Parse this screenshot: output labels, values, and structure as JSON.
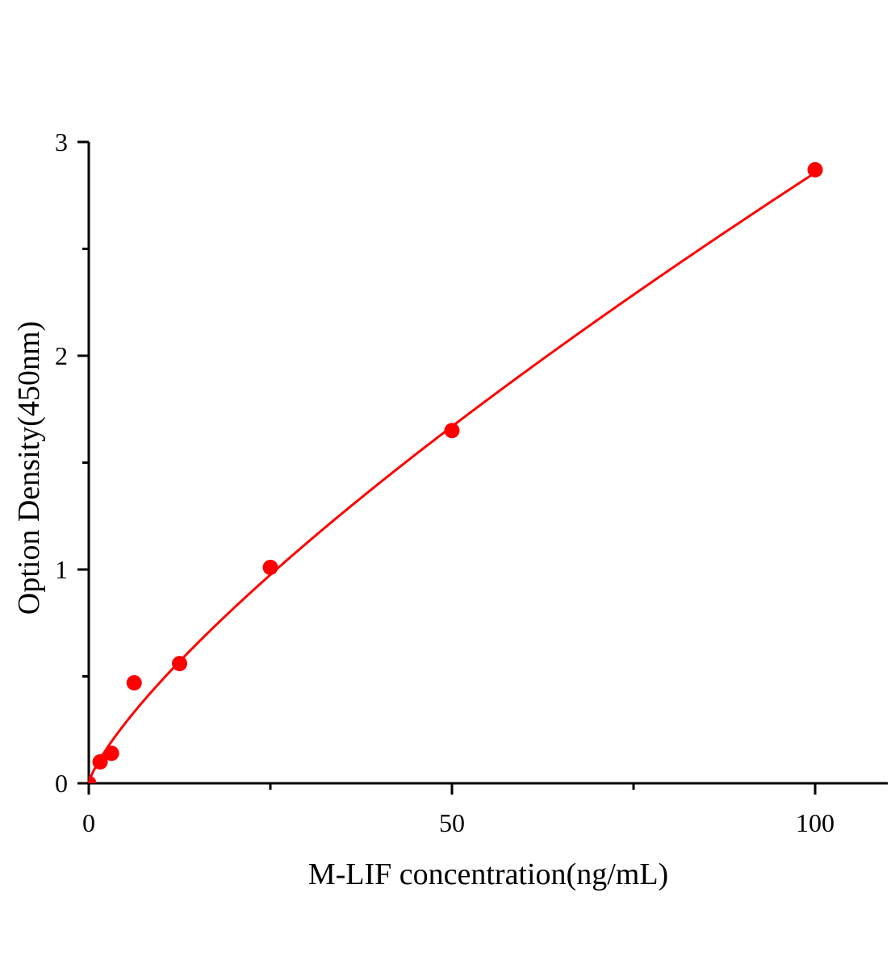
{
  "chart_data": {
    "type": "scatter",
    "title": "",
    "xlabel": "M-LIF concentration(ng/mL)",
    "ylabel": "Option Density(450nm)",
    "xlim": [
      0,
      110
    ],
    "ylim": [
      0,
      3
    ],
    "x_ticks": [
      0,
      50,
      100
    ],
    "x_minor_ticks": [
      25,
      75
    ],
    "y_ticks": [
      0,
      1,
      2,
      3
    ],
    "y_minor_ticks": [
      0.5,
      1.5,
      2.5
    ],
    "grid": false,
    "legend": "none",
    "color": "#ff0000",
    "points": {
      "x": [
        0,
        1.56,
        3.125,
        6.25,
        12.5,
        25,
        50,
        100
      ],
      "y": [
        0.0,
        0.1,
        0.14,
        0.47,
        0.56,
        1.01,
        1.65,
        2.87
      ]
    },
    "fit": {
      "type": "power",
      "equation_form": "y = a*x^b",
      "a": 0.0805,
      "b": 0.775,
      "x_range": [
        0,
        100
      ]
    }
  }
}
